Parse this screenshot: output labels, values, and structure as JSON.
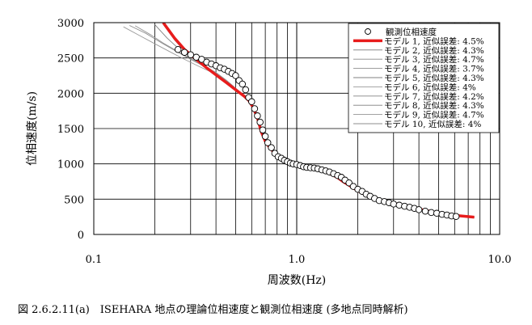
{
  "chart_data": {
    "type": "line",
    "xscale": "log",
    "xlim": [
      0.1,
      10.0
    ],
    "ylim": [
      0,
      3000
    ],
    "xticks": [
      "0.1",
      "1.0",
      "10.0"
    ],
    "yticks": [
      "0",
      "500",
      "1000",
      "1500",
      "2000",
      "2500",
      "3000"
    ],
    "xlabel": "周波数(Hz)",
    "ylabel": "位相速度(m/s)",
    "grid": true,
    "legend_position": "top-right",
    "observed": {
      "name": "観測位相速度",
      "x": [
        0.26,
        0.28,
        0.3,
        0.32,
        0.34,
        0.36,
        0.38,
        0.4,
        0.42,
        0.44,
        0.46,
        0.48,
        0.5,
        0.52,
        0.54,
        0.56,
        0.58,
        0.6,
        0.62,
        0.64,
        0.66,
        0.68,
        0.7,
        0.72,
        0.75,
        0.78,
        0.81,
        0.84,
        0.87,
        0.9,
        0.93,
        0.96,
        1.0,
        1.04,
        1.08,
        1.12,
        1.17,
        1.22,
        1.27,
        1.33,
        1.39,
        1.45,
        1.52,
        1.59,
        1.66,
        1.73,
        1.81,
        1.9,
        2.0,
        2.1,
        2.2,
        2.3,
        2.42,
        2.55,
        2.7,
        2.85,
        3.0,
        3.2,
        3.4,
        3.6,
        3.8,
        4.0,
        4.3,
        4.6,
        4.9,
        5.2,
        5.5,
        5.8,
        6.1
      ],
      "y": [
        2620,
        2580,
        2545,
        2510,
        2480,
        2440,
        2415,
        2390,
        2360,
        2340,
        2310,
        2280,
        2250,
        2180,
        2130,
        2050,
        1940,
        1880,
        1780,
        1680,
        1590,
        1480,
        1390,
        1300,
        1230,
        1150,
        1100,
        1080,
        1050,
        1030,
        1010,
        1000,
        990,
        975,
        960,
        950,
        945,
        940,
        930,
        915,
        900,
        885,
        860,
        835,
        810,
        770,
        730,
        680,
        640,
        610,
        570,
        540,
        510,
        480,
        465,
        450,
        430,
        415,
        400,
        385,
        370,
        350,
        330,
        310,
        300,
        285,
        275,
        262,
        255
      ]
    },
    "series": [
      {
        "name": "モデル 1, 近似誤差: 4.5%",
        "color": "#e81c1c",
        "x": [
          0.22,
          0.25,
          0.28,
          0.32,
          0.36,
          0.4,
          0.45,
          0.5,
          0.55,
          0.58,
          0.61,
          0.64,
          0.67,
          0.7,
          0.74,
          0.8,
          0.88,
          0.95,
          1.0,
          1.1,
          1.2,
          1.3,
          1.4,
          1.5,
          1.6,
          1.7,
          1.85,
          2.0,
          2.2,
          2.5,
          3.0,
          3.5,
          4.0,
          5.0,
          6.0,
          7.5
        ],
        "y": [
          3000,
          2780,
          2620,
          2480,
          2360,
          2260,
          2150,
          2050,
          1960,
          1900,
          1800,
          1650,
          1450,
          1320,
          1220,
          1120,
          1040,
          1000,
          985,
          955,
          935,
          910,
          880,
          845,
          800,
          745,
          680,
          620,
          560,
          500,
          440,
          400,
          360,
          300,
          270,
          245
        ]
      },
      {
        "name": "モデル 2, 近似誤差: 4.3%",
        "color": "#7a7a7a",
        "x": [
          0.22,
          0.25,
          0.28,
          0.32,
          0.36,
          0.4,
          0.45,
          0.5,
          0.55,
          0.58,
          0.61,
          0.64,
          0.67,
          0.7,
          0.74,
          0.8,
          0.88,
          0.95,
          1.0,
          1.1,
          1.2,
          1.3,
          1.4,
          1.5,
          1.6,
          1.7,
          1.85,
          2.0,
          2.2,
          2.5,
          3.0,
          3.5,
          4.0,
          5.0,
          6.0,
          7.5
        ],
        "y": [
          2980,
          2760,
          2600,
          2470,
          2350,
          2250,
          2140,
          2040,
          1950,
          1890,
          1780,
          1640,
          1440,
          1310,
          1210,
          1110,
          1040,
          1005,
          990,
          965,
          950,
          930,
          900,
          860,
          810,
          750,
          680,
          620,
          560,
          500,
          440,
          400,
          360,
          300,
          268,
          242
        ]
      },
      {
        "name": "モデル 3, 近似誤差: 4.7%",
        "color": "#8a8a8a",
        "x": [
          0.15,
          0.18,
          0.22,
          0.26,
          0.3,
          0.35,
          0.4,
          0.45,
          0.5,
          0.55,
          0.58,
          0.61,
          0.64,
          0.67,
          0.7,
          0.74,
          0.8,
          0.88,
          0.95,
          1.0,
          1.1,
          1.2,
          1.3,
          1.4,
          1.5,
          1.6,
          1.7,
          1.85,
          2.0,
          2.2,
          2.5,
          3.0,
          3.5,
          4.0,
          5.0,
          6.0,
          7.5
        ],
        "y": [
          2960,
          2850,
          2700,
          2580,
          2480,
          2380,
          2290,
          2180,
          2070,
          1970,
          1910,
          1810,
          1660,
          1460,
          1330,
          1230,
          1130,
          1050,
          1010,
          995,
          975,
          960,
          945,
          920,
          880,
          820,
          760,
          690,
          625,
          565,
          505,
          442,
          402,
          362,
          302,
          270,
          244
        ]
      },
      {
        "name": "モデル 4, 近似誤差: 3.7%",
        "color": "#909090",
        "x": [
          0.22,
          0.25,
          0.28,
          0.32,
          0.36,
          0.4,
          0.45,
          0.5,
          0.55,
          0.58,
          0.61,
          0.64,
          0.67,
          0.7,
          0.74,
          0.8,
          0.88,
          0.95,
          1.0,
          1.1,
          1.2,
          1.3,
          1.4,
          1.5,
          1.6,
          1.7,
          1.85,
          2.0,
          2.2,
          2.5,
          3.0,
          3.5,
          4.0,
          5.0,
          6.0,
          7.5
        ],
        "y": [
          2990,
          2770,
          2610,
          2480,
          2360,
          2260,
          2150,
          2050,
          1960,
          1900,
          1790,
          1650,
          1450,
          1315,
          1215,
          1115,
          1045,
          1010,
          995,
          970,
          960,
          945,
          915,
          875,
          820,
          755,
          685,
          622,
          562,
          502,
          441,
          401,
          361,
          301,
          269,
          243
        ]
      },
      {
        "name": "モデル 5, 近似誤差: 4.3%",
        "color": "#808080",
        "x": [
          0.2,
          0.23,
          0.26,
          0.3,
          0.35,
          0.4,
          0.45,
          0.5,
          0.55,
          0.58,
          0.61,
          0.64,
          0.67,
          0.7,
          0.74,
          0.8,
          0.88,
          0.95,
          1.0,
          1.1,
          1.2,
          1.3,
          1.4,
          1.5,
          1.6,
          1.7,
          1.85,
          2.0,
          2.2,
          2.5,
          3.0,
          3.5,
          4.0,
          5.0,
          6.0,
          7.5
        ],
        "y": [
          2970,
          2780,
          2640,
          2510,
          2390,
          2280,
          2170,
          2060,
          1965,
          1905,
          1800,
          1655,
          1455,
          1320,
          1220,
          1120,
          1045,
          1008,
          993,
          970,
          955,
          935,
          905,
          865,
          815,
          752,
          682,
          621,
          561,
          501,
          440,
          400,
          360,
          300,
          268,
          242
        ]
      },
      {
        "name": "モデル 6, 近似誤差: 4%",
        "color": "#9a9a9a",
        "x": [
          0.14,
          0.17,
          0.2,
          0.24,
          0.28,
          0.33,
          0.4,
          0.45,
          0.5,
          0.55,
          0.58,
          0.61,
          0.64,
          0.67,
          0.7,
          0.74,
          0.8,
          0.88,
          0.95,
          1.0,
          1.1,
          1.2,
          1.3,
          1.4,
          1.5,
          1.6,
          1.7,
          1.85,
          2.0,
          2.2,
          2.5,
          3.0,
          3.5,
          4.0,
          5.0,
          6.0,
          7.5
        ],
        "y": [
          2940,
          2810,
          2700,
          2580,
          2480,
          2380,
          2270,
          2170,
          2065,
          1968,
          1908,
          1805,
          1660,
          1458,
          1325,
          1225,
          1125,
          1048,
          1010,
          996,
          978,
          965,
          950,
          925,
          885,
          825,
          762,
          692,
          626,
          566,
          505,
          443,
          403,
          363,
          303,
          271,
          245
        ]
      },
      {
        "name": "モデル 7, 近似誤差: 4.2%",
        "color": "#858585",
        "x": [
          0.22,
          0.25,
          0.28,
          0.32,
          0.36,
          0.4,
          0.45,
          0.5,
          0.55,
          0.58,
          0.61,
          0.64,
          0.67,
          0.7,
          0.74,
          0.8,
          0.88,
          0.95,
          1.0,
          1.1,
          1.2,
          1.3,
          1.4,
          1.5,
          1.6,
          1.7,
          1.85,
          2.0,
          2.2,
          2.5,
          3.0,
          3.5,
          4.0,
          5.0,
          6.0,
          7.5
        ],
        "y": [
          2985,
          2765,
          2605,
          2475,
          2355,
          2255,
          2145,
          2045,
          1955,
          1895,
          1785,
          1645,
          1445,
          1312,
          1212,
          1112,
          1042,
          1006,
          992,
          968,
          952,
          933,
          903,
          863,
          812,
          751,
          681,
          620,
          560,
          500,
          440,
          400,
          360,
          300,
          268,
          242
        ]
      },
      {
        "name": "モデル 8, 近似誤差: 4.3%",
        "color": "#7f7f7f",
        "x": [
          0.22,
          0.25,
          0.28,
          0.32,
          0.36,
          0.4,
          0.45,
          0.5,
          0.55,
          0.58,
          0.61,
          0.64,
          0.67,
          0.7,
          0.74,
          0.8,
          0.88,
          0.95,
          1.0,
          1.1,
          1.2,
          1.3,
          1.4,
          1.5,
          1.6,
          1.7,
          1.85,
          2.0,
          2.2,
          2.5,
          3.0,
          3.5,
          4.0,
          5.0,
          6.0,
          7.5
        ],
        "y": [
          2975,
          2755,
          2598,
          2468,
          2348,
          2248,
          2138,
          2038,
          1948,
          1888,
          1778,
          1638,
          1438,
          1308,
          1208,
          1108,
          1038,
          1003,
          989,
          966,
          951,
          932,
          902,
          862,
          811,
          750,
          680,
          619,
          559,
          499,
          439,
          399,
          359,
          299,
          267,
          241
        ]
      },
      {
        "name": "モデル 9, 近似誤差: 4.7%",
        "color": "#959595",
        "x": [
          0.16,
          0.19,
          0.22,
          0.26,
          0.3,
          0.35,
          0.4,
          0.45,
          0.5,
          0.55,
          0.58,
          0.61,
          0.64,
          0.67,
          0.7,
          0.74,
          0.8,
          0.88,
          0.95,
          1.0,
          1.1,
          1.2,
          1.3,
          1.4,
          1.5,
          1.6,
          1.7,
          1.85,
          2.0,
          2.2,
          2.5,
          3.0,
          3.5,
          4.0,
          5.0,
          6.0,
          7.5
        ],
        "y": [
          2955,
          2830,
          2710,
          2590,
          2490,
          2390,
          2295,
          2185,
          2072,
          1972,
          1912,
          1812,
          1662,
          1462,
          1330,
          1230,
          1130,
          1050,
          1012,
          998,
          980,
          968,
          955,
          930,
          890,
          830,
          765,
          695,
          628,
          568,
          507,
          444,
          404,
          364,
          304,
          272,
          246
        ]
      },
      {
        "name": "モデル 10, 近似誤差: 4%",
        "color": "#8c8c8c",
        "x": [
          0.22,
          0.25,
          0.28,
          0.32,
          0.36,
          0.4,
          0.45,
          0.5,
          0.55,
          0.58,
          0.61,
          0.64,
          0.67,
          0.7,
          0.74,
          0.8,
          0.88,
          0.95,
          1.0,
          1.1,
          1.2,
          1.3,
          1.4,
          1.5,
          1.6,
          1.7,
          1.85,
          2.0,
          2.2,
          2.5,
          3.0,
          3.5,
          4.0,
          5.0,
          6.0,
          7.5
        ],
        "y": [
          2995,
          2775,
          2612,
          2482,
          2362,
          2262,
          2152,
          2052,
          1962,
          1902,
          1792,
          1652,
          1452,
          1318,
          1218,
          1118,
          1046,
          1009,
          994,
          972,
          958,
          940,
          910,
          870,
          818,
          754,
          684,
          622,
          562,
          502,
          441,
          401,
          361,
          301,
          269,
          243
        ]
      }
    ]
  },
  "caption": "図 2.6.2.11(a)　ISEHARA 地点の理論位相速度と観測位相速度 (多地点同時解析)"
}
